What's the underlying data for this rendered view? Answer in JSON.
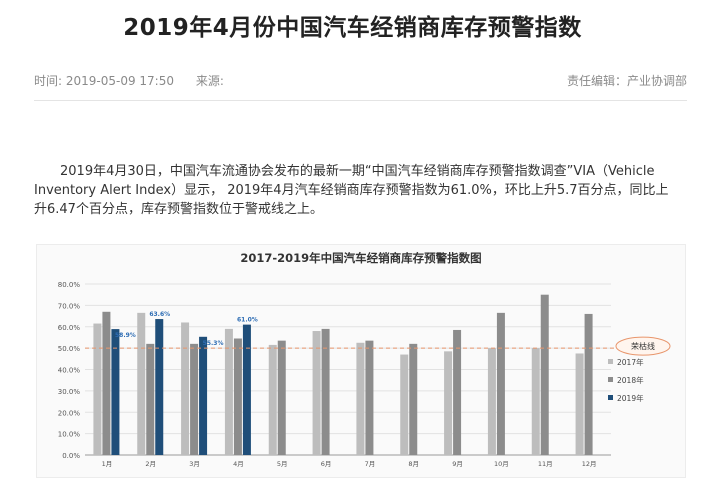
{
  "article": {
    "title": "2019年4月份中国汽车经销商库存预警指数",
    "time_label": "时间: 2019-05-09 17:50",
    "source_label": "来源:",
    "editor_label": "责任编辑：产业协调部",
    "paragraph": "2019年4月30日，中国汽车流通协会发布的最新一期“中国汽车经销商库存预警指数调查”VIA（Vehicle Inventory Alert Index）显示， 2019年4月汽车经销商库存预警指数为61.0%，环比上升5.7百分点，同比上升6.47个百分点，库存预警指数位于警戒线之上。"
  },
  "chart_data": {
    "type": "bar",
    "title": "2017-2019年中国汽车经销商库存预警指数图",
    "categories": [
      "1月",
      "2月",
      "3月",
      "4月",
      "5月",
      "6月",
      "7月",
      "8月",
      "9月",
      "10月",
      "11月",
      "12月"
    ],
    "series": [
      {
        "name": "2017年",
        "color": "#bdbdbd",
        "values": [
          61.5,
          66.5,
          62.0,
          59.0,
          51.5,
          58.0,
          52.5,
          47.0,
          48.5,
          50.0,
          50.0,
          47.5
        ]
      },
      {
        "name": "2018年",
        "color": "#8c8c8c",
        "values": [
          67.0,
          52.0,
          52.0,
          54.5,
          53.5,
          59.0,
          53.5,
          52.0,
          58.5,
          66.5,
          75.0,
          66.0
        ]
      },
      {
        "name": "2019年",
        "color": "#1f4e79",
        "values": [
          58.9,
          63.6,
          55.3,
          61.0,
          null,
          null,
          null,
          null,
          null,
          null,
          null,
          null
        ]
      }
    ],
    "data_labels": [
      "58.9%",
      "63.6%",
      "55.3%",
      "61.0%"
    ],
    "yticks": [
      "0.0%",
      "10.0%",
      "20.0%",
      "30.0%",
      "40.0%",
      "50.0%",
      "60.0%",
      "70.0%",
      "80.0%"
    ],
    "ylim": [
      0,
      80
    ],
    "reference_line": {
      "value": 50,
      "label": "荣枯线",
      "color": "#e8956b"
    },
    "legend_position": "right"
  }
}
